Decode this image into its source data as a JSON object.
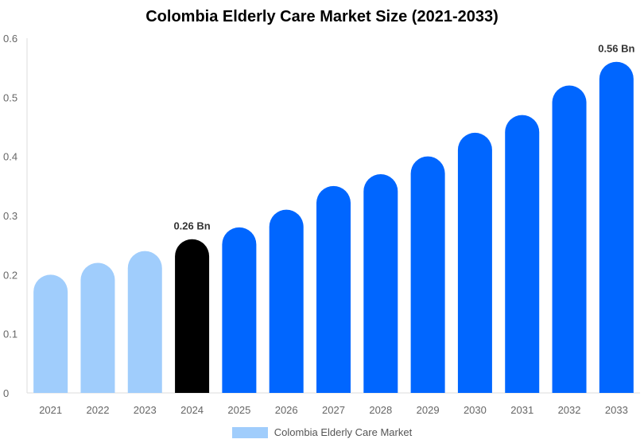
{
  "chart_data": {
    "type": "bar",
    "title": "Colombia Elderly Care Market Size (2021-2033)",
    "xlabel": "",
    "ylabel": "",
    "ylim": [
      0,
      0.6
    ],
    "yticks": [
      "0",
      "0.1",
      "0.2",
      "0.3",
      "0.4",
      "0.5",
      "0.6"
    ],
    "categories": [
      "2021",
      "2022",
      "2023",
      "2024",
      "2025",
      "2026",
      "2027",
      "2028",
      "2029",
      "2030",
      "2031",
      "2032",
      "2033"
    ],
    "series": [
      {
        "name": "Colombia Elderly Care Market",
        "values": [
          0.2,
          0.22,
          0.24,
          0.26,
          0.28,
          0.31,
          0.35,
          0.37,
          0.4,
          0.44,
          0.47,
          0.52,
          0.56
        ]
      }
    ],
    "bar_colors": [
      "#a0cdfc",
      "#a0cdfc",
      "#a0cdfc",
      "#000000",
      "#0066ff",
      "#0066ff",
      "#0066ff",
      "#0066ff",
      "#0066ff",
      "#0066ff",
      "#0066ff",
      "#0066ff",
      "#0066ff"
    ],
    "annotations": [
      {
        "category": "2024",
        "text": "0.26 Bn"
      },
      {
        "category": "2033",
        "text": "0.56 Bn"
      }
    ],
    "legend": {
      "label": "Colombia Elderly Care Market",
      "color": "#a0cdfc",
      "position": "bottom"
    },
    "grid": false
  }
}
